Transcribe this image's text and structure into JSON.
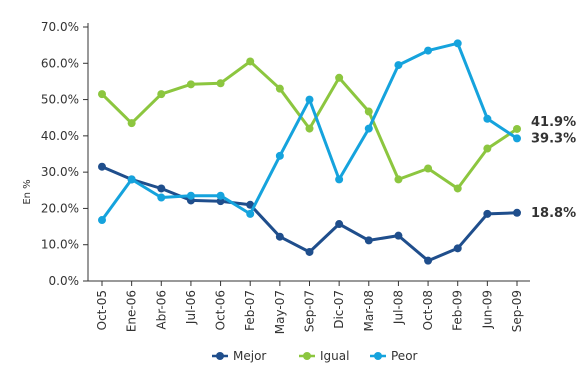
{
  "chart_data": {
    "type": "line",
    "categories": [
      "Oct-05",
      "Ene-06",
      "Abr-06",
      "Jul-06",
      "Oct-06",
      "Feb-07",
      "May-07",
      "Sep-07",
      "Dic-07",
      "Mar-08",
      "Jul-08",
      "Oct-08",
      "Feb-09",
      "Jun-09",
      "Sep-09"
    ],
    "ylabel": "En %",
    "ylim": [
      0,
      70
    ],
    "yticks": [
      "0.0%",
      "10.0%",
      "20.0%",
      "30.0%",
      "40.0%",
      "50.0%",
      "60.0%",
      "70.0%"
    ],
    "grid": false,
    "legend_position": "bottom",
    "series": [
      {
        "name": "Mejor",
        "color": "#1f4e8c",
        "values": [
          31.5,
          28.0,
          25.5,
          22.2,
          22.0,
          21.0,
          12.2,
          8.0,
          15.7,
          11.2,
          12.5,
          5.6,
          9.0,
          18.5,
          18.8
        ],
        "end_label": "18.8%"
      },
      {
        "name": "Igual",
        "color": "#8cc63f",
        "values": [
          51.5,
          43.5,
          51.5,
          54.2,
          54.5,
          60.5,
          53.0,
          42.0,
          56.0,
          46.7,
          28.0,
          31.0,
          25.5,
          36.5,
          41.9
        ],
        "end_label": "41.9%"
      },
      {
        "name": "Peor",
        "color": "#15a3dd",
        "values": [
          16.8,
          28.0,
          23.0,
          23.5,
          23.5,
          18.5,
          34.5,
          50.0,
          28.0,
          42.0,
          59.5,
          63.5,
          65.5,
          44.7,
          39.3
        ],
        "end_label": "39.3%"
      }
    ]
  }
}
